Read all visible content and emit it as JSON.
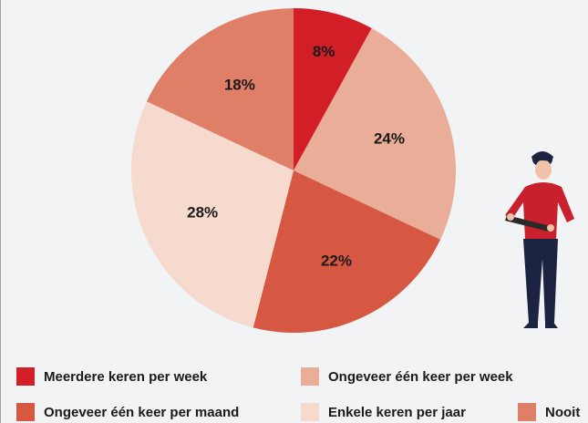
{
  "chart_data": {
    "type": "pie",
    "categories": [
      "Meerdere keren per week",
      "Ongeveer één keer per week",
      "Ongeveer één keer per maand",
      "Enkele keren per jaar",
      "Nooit"
    ],
    "values": [
      8,
      24,
      22,
      28,
      18
    ],
    "value_labels": [
      "8%",
      "24%",
      "22%",
      "28%",
      "18%"
    ],
    "colors": [
      "#d21f27",
      "#eaae98",
      "#d65843",
      "#f6dace",
      "#e07f68"
    ]
  }
}
